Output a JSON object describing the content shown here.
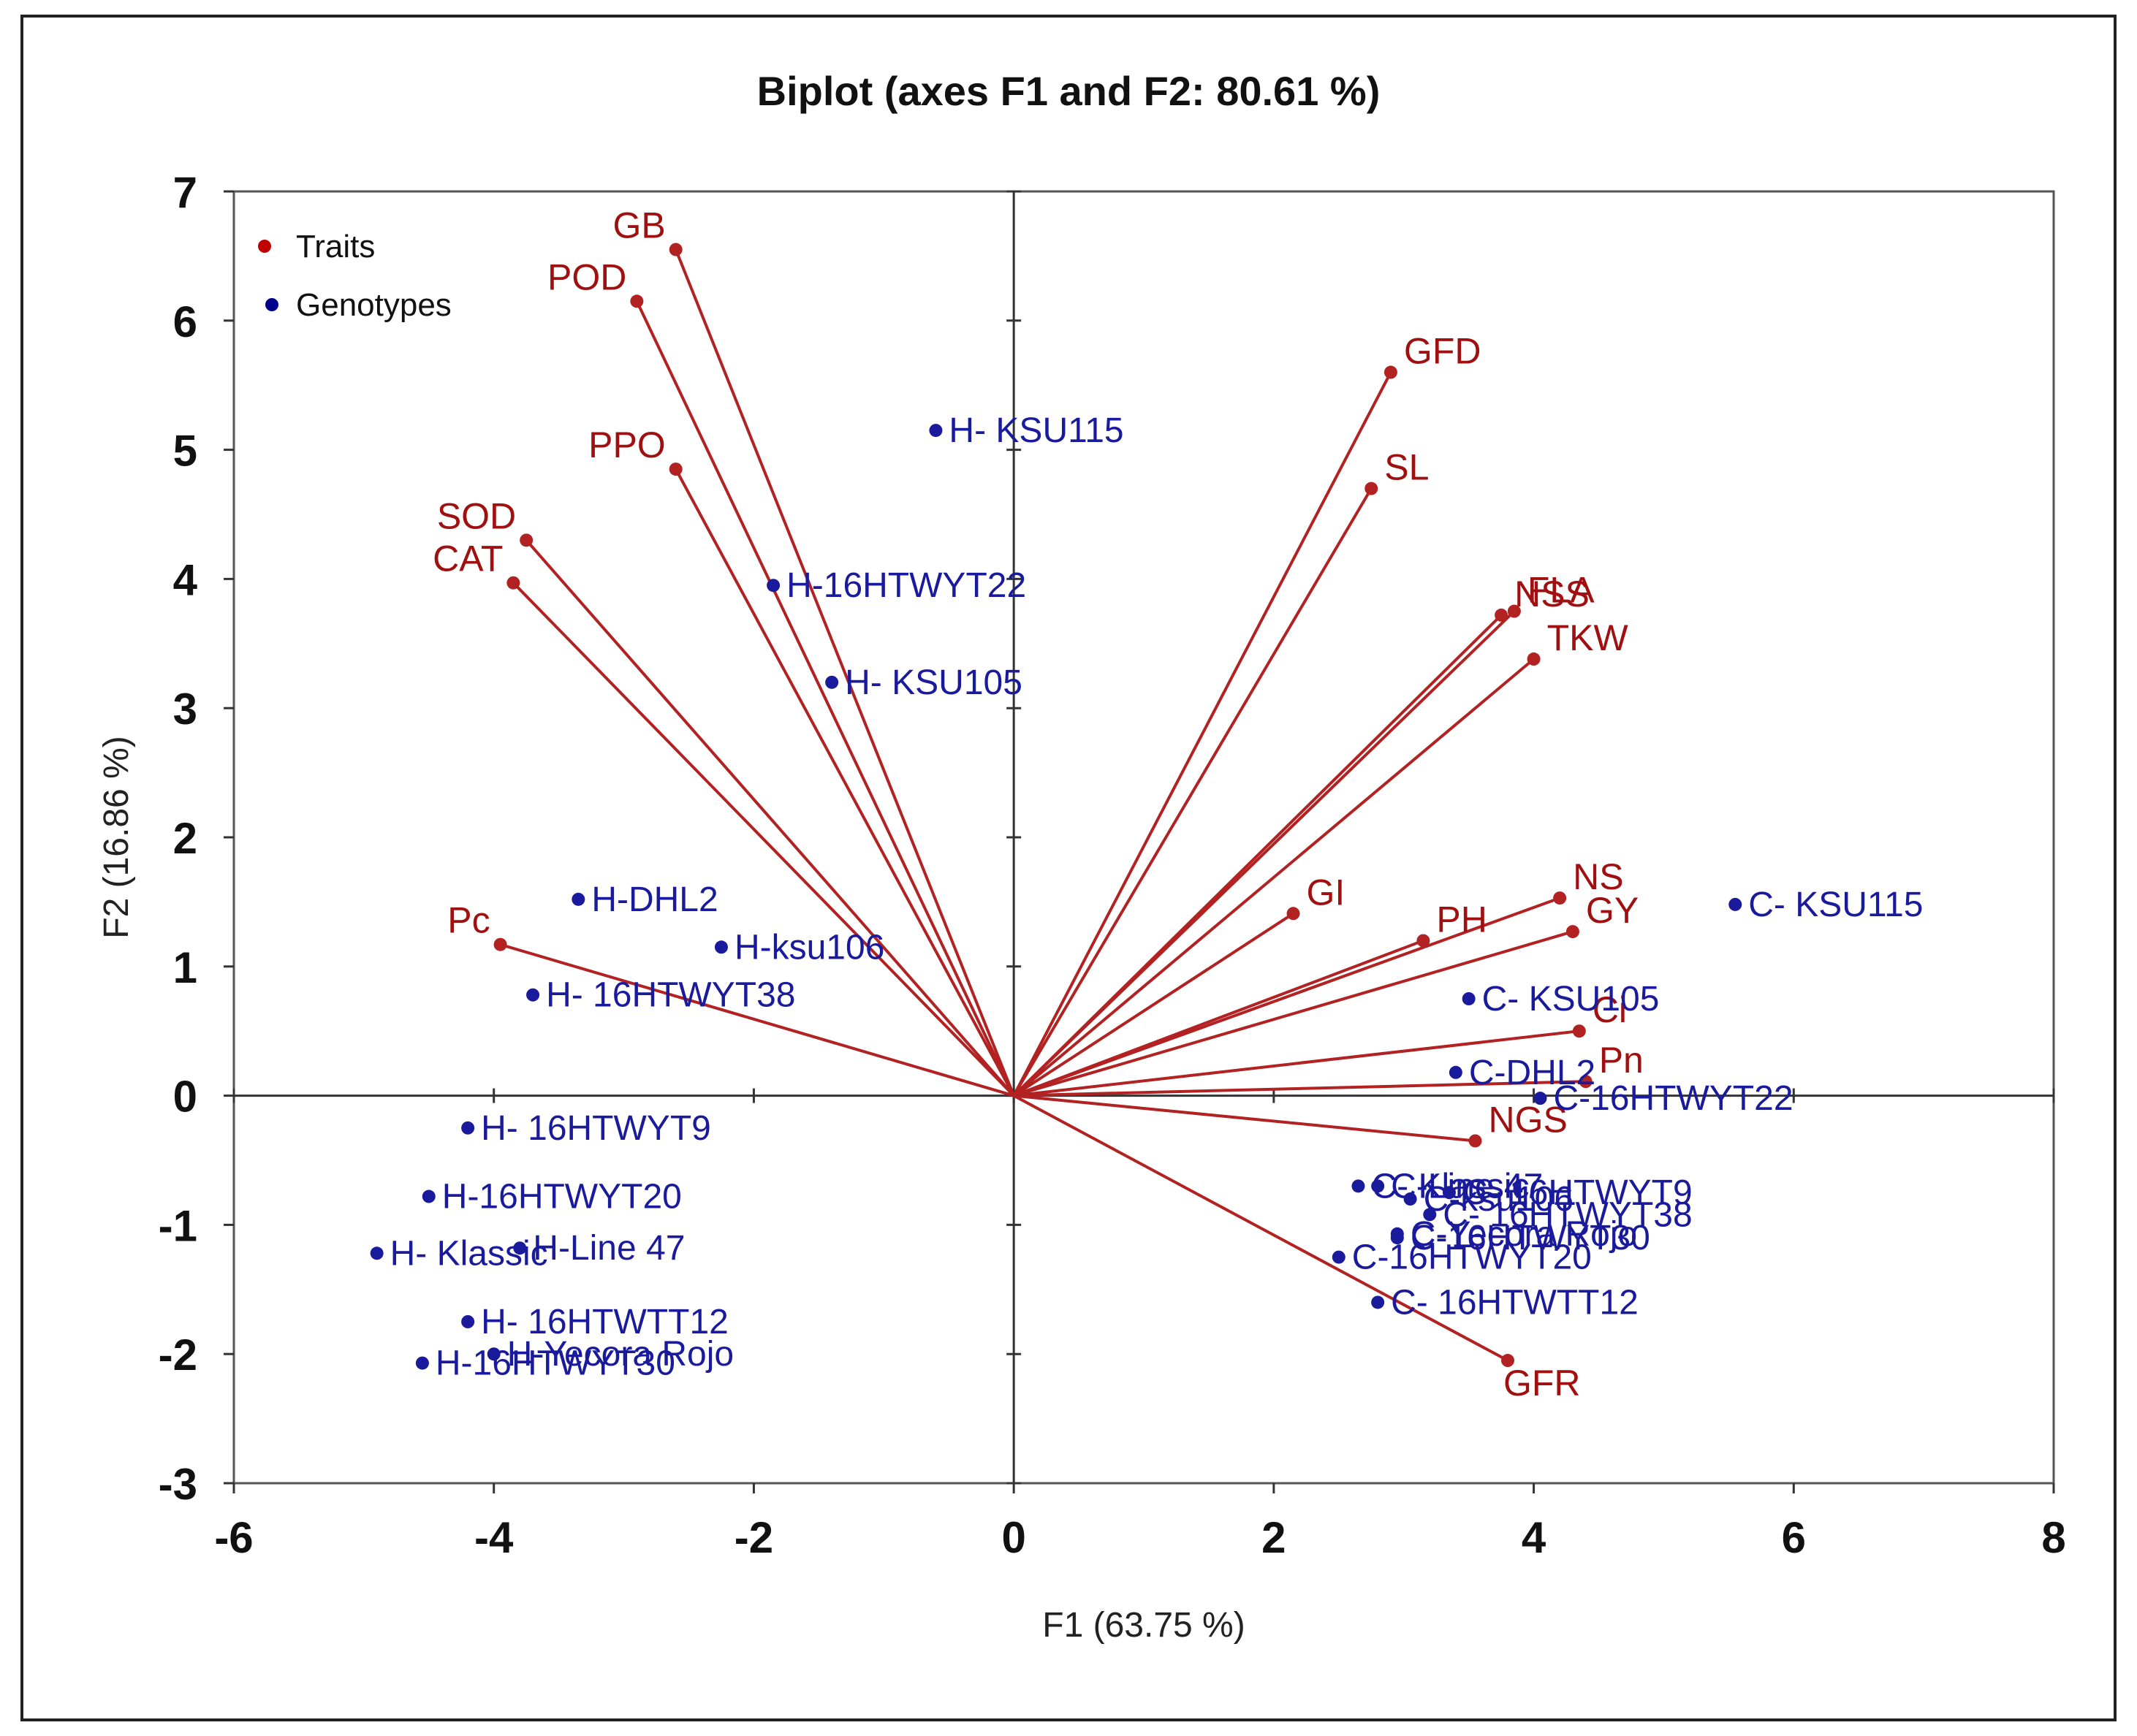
{
  "chart_data": {
    "type": "scatter",
    "subtype": "biplot",
    "title": "Biplot (axes F1 and F2: 80.61 %)",
    "xlabel": "F1 (63.75 %)",
    "ylabel": "F2 (16.86 %)",
    "xlim": [
      -6,
      8
    ],
    "ylim": [
      -3,
      7
    ],
    "xticks": [
      "-6",
      "-4",
      "-2",
      "0",
      "2",
      "4",
      "6",
      "8"
    ],
    "yticks": [
      "-3",
      "-2",
      "-1",
      "0",
      "1",
      "2",
      "3",
      "4",
      "5",
      "6",
      "7"
    ],
    "xtick_values": [
      -6,
      -4,
      -2,
      0,
      2,
      4,
      6,
      8
    ],
    "ytick_values": [
      -3,
      -2,
      -1,
      0,
      1,
      2,
      3,
      4,
      5,
      6,
      7
    ],
    "legend": {
      "position": "top-left",
      "entries": [
        {
          "name": "Traits",
          "color": "#c00000"
        },
        {
          "name": "Genotypes",
          "color": "#00008b"
        }
      ]
    },
    "colors": {
      "traits": "#b22222",
      "trait_label": "#a01010",
      "genotypes": "#1a1a9c",
      "axis": "#333333"
    },
    "traits": [
      {
        "label": "GB",
        "x": -2.6,
        "y": 6.55
      },
      {
        "label": "POD",
        "x": -2.9,
        "y": 6.15
      },
      {
        "label": "PPO",
        "x": -2.6,
        "y": 4.85
      },
      {
        "label": "SOD",
        "x": -3.75,
        "y": 4.3
      },
      {
        "label": "CAT",
        "x": -3.85,
        "y": 3.97
      },
      {
        "label": "Pc",
        "x": -3.95,
        "y": 1.17
      },
      {
        "label": "GFD",
        "x": 2.9,
        "y": 5.6
      },
      {
        "label": "SL",
        "x": 2.75,
        "y": 4.7
      },
      {
        "label": "NSS",
        "x": 3.75,
        "y": 3.72
      },
      {
        "label": "FLA",
        "x": 3.85,
        "y": 3.75
      },
      {
        "label": "TKW",
        "x": 4.0,
        "y": 3.38
      },
      {
        "label": "GI",
        "x": 2.15,
        "y": 1.41
      },
      {
        "label": "PH",
        "x": 3.15,
        "y": 1.2
      },
      {
        "label": "NS",
        "x": 4.2,
        "y": 1.53
      },
      {
        "label": "GY",
        "x": 4.3,
        "y": 1.27
      },
      {
        "label": "Ci",
        "x": 4.35,
        "y": 0.5
      },
      {
        "label": "Pn",
        "x": 4.4,
        "y": 0.11
      },
      {
        "label": "NGS",
        "x": 3.55,
        "y": -0.35
      },
      {
        "label": "GFR",
        "x": 3.8,
        "y": -2.05
      }
    ],
    "genotypes": [
      {
        "label": "H- KSU115",
        "x": -0.6,
        "y": 5.15
      },
      {
        "label": "H-16HTWYT22",
        "x": -1.85,
        "y": 3.95
      },
      {
        "label": "H- KSU105",
        "x": -1.4,
        "y": 3.2
      },
      {
        "label": "H-DHL2",
        "x": -3.35,
        "y": 1.52
      },
      {
        "label": "H-ksu106",
        "x": -2.25,
        "y": 1.15
      },
      {
        "label": "H- 16HTWYT38",
        "x": -3.7,
        "y": 0.78
      },
      {
        "label": "H- 16HTWYT9",
        "x": -4.2,
        "y": -0.25
      },
      {
        "label": "H-16HTWYT20",
        "x": -4.5,
        "y": -0.78
      },
      {
        "label": "H- Klassic",
        "x": -4.9,
        "y": -1.22
      },
      {
        "label": "H-Line 47",
        "x": -3.8,
        "y": -1.18
      },
      {
        "label": "H- 16HTWTT12",
        "x": -4.2,
        "y": -1.75
      },
      {
        "label": "H-Yecora Rojo",
        "x": -4.0,
        "y": -2.0
      },
      {
        "label": "H-16HTWYT30",
        "x": -4.55,
        "y": -2.07
      },
      {
        "label": "C- KSU115",
        "x": 5.55,
        "y": 1.48
      },
      {
        "label": "C- KSU105",
        "x": 3.5,
        "y": 0.75
      },
      {
        "label": "C-DHL2",
        "x": 3.4,
        "y": 0.18
      },
      {
        "label": "C-16HTWYT22",
        "x": 4.05,
        "y": -0.02
      },
      {
        "label": "C-Line 47",
        "x": 2.8,
        "y": -0.7
      },
      {
        "label": "C- Klassic",
        "x": 2.65,
        "y": -0.7
      },
      {
        "label": "C- 16HTWYT9",
        "x": 3.35,
        "y": -0.75
      },
      {
        "label": "C- 16HTWYT38",
        "x": 3.2,
        "y": -0.92
      },
      {
        "label": "C-ksu106",
        "x": 3.05,
        "y": -0.8
      },
      {
        "label": "C-Yecora Rojo",
        "x": 2.95,
        "y": -1.07
      },
      {
        "label": "C-16HTWYT30",
        "x": 2.95,
        "y": -1.1
      },
      {
        "label": "C-16HTWYT20",
        "x": 2.5,
        "y": -1.25
      },
      {
        "label": "C- 16HTWTT12",
        "x": 2.8,
        "y": -1.6
      }
    ]
  }
}
